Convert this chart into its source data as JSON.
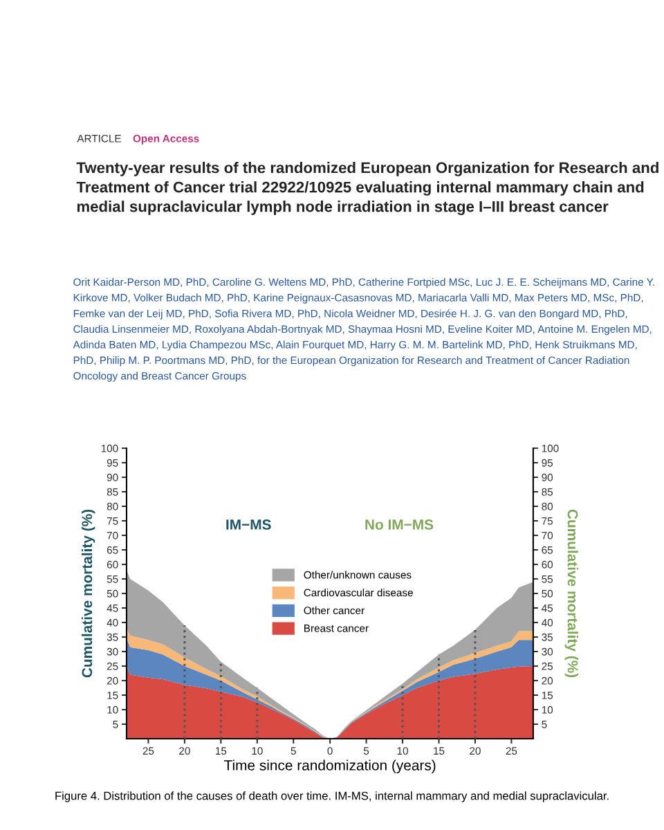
{
  "chart_data": [
    {
      "type": "area",
      "stacked": true,
      "title": "Twenty-year results of the randomized European Organization for Research and Treatment of Cancer trial 22922/10925 evaluating internal mammary chain and medial supraclavicular lymph node irradiation in stage I–III breast cancer",
      "subtitle": "Orit Kaidar-Person MD, PhD, Caroline G. Weltens MD, PhD, Catherine Fortpied MSc, Luc J. E. E. Scheijmans MD, Carine Y. Kirkove MD, Volker Budach MD, PhD, Karine Peignaux-Casasnovas MD, Mariacarla Valli MD, Max Peters MD, MSc, PhD, Femke van der Leij MD, PhD, Sofia Rivera MD, PhD, Nicola Weidner MD, Desirée H. J. G. van den Bongard MD, PhD, Claudia Linsenmeier MD, Roxolyana Abdah-Bortnyak MD, Shaymaa Hosni MD, Eveline Koiter MD, Antoine M. Engelen MD, Adinda Baten MD, Lydia Champezou MSc, Alain Fourquet MD, Harry G. M. M. Bartelink MD, PhD, Henk Struikmans MD, PhD, Philip M. P. Poortmans MD, PhD, for the European Organization for Research and Treatment of Cancer Radiation Oncology and Breast Cancer Groups",
      "annotations": [
        "ARTICLE",
        "Open Access",
        "IM−MS",
        "Figure 4. Distribution of the causes of death over time. IM-MS, internal mammary and medial supraclavicular."
      ],
      "xlabel": "Time since randomization (years)",
      "ylabel": "Cumulative mortality (%)",
      "x": [
        0,
        1,
        2,
        3,
        5,
        7,
        8,
        10,
        12,
        15,
        17,
        20,
        23,
        25,
        27.5,
        28
      ],
      "series": [
        {
          "name": "Breast cancer",
          "color": "#d94a43",
          "values": [
            0,
            0.5,
            2,
            3.5,
            6.5,
            9,
            10.2,
            12.5,
            14.4,
            16.2,
            17.3,
            18.5,
            20.5,
            21,
            22,
            25
          ]
        },
        {
          "name": "Other cancer",
          "color": "#5b86c0",
          "values": [
            0,
            0.2,
            0.4,
            0.5,
            0.4,
            0.5,
            0.8,
            1,
            1.6,
            3.8,
            4.7,
            6.5,
            8.5,
            9.5,
            9.5,
            9.5
          ]
        },
        {
          "name": "Cardiovascular disease",
          "color": "#f8b978",
          "values": [
            0,
            0.2,
            0.2,
            0.2,
            0.3,
            0.5,
            0.5,
            1.1,
            1,
            1.5,
            2,
            3,
            3.5,
            3.5,
            4,
            3.5
          ]
        },
        {
          "name": "Other/unknown causes",
          "color": "#a6a6a6",
          "values": [
            0,
            0.3,
            0.7,
            0.7,
            1.2,
            2,
            2.3,
            2.9,
            4,
            5,
            8,
            11,
            14.5,
            17,
            19.5,
            20
          ]
        }
      ],
      "xlim": [
        28,
        0
      ],
      "xticks": [
        25,
        20,
        15,
        10,
        5
      ],
      "ylim": [
        0,
        100
      ],
      "yticks": [
        5,
        10,
        15,
        20,
        25,
        30,
        35,
        40,
        45,
        50,
        55,
        60,
        65,
        70,
        75,
        80,
        85,
        90,
        95,
        100
      ],
      "ref_lines": [
        {
          "axis": "x",
          "value": 20,
          "line_style": "dotted",
          "color": "#555555"
        },
        {
          "axis": "x",
          "value": 15,
          "line_style": "dotted",
          "color": "#555555"
        },
        {
          "axis": "x",
          "value": 10,
          "line_style": "dotted",
          "color": "#555555"
        }
      ],
      "legend": "right",
      "grid": false
    },
    {
      "type": "area",
      "stacked": true,
      "annotations": [
        "No IM−MS"
      ],
      "ylabel": "Cumulative mortality (%)",
      "x": [
        0,
        1,
        2,
        3,
        5,
        7,
        10,
        12,
        15,
        17,
        20,
        23,
        25,
        26,
        28
      ],
      "series": [
        {
          "color": "#d94a43",
          "values": [
            0,
            0.5,
            3,
            5.5,
            8.5,
            11.3,
            15,
            17.5,
            20,
            21.3,
            22.3,
            23.8,
            24.5,
            24.8,
            25
          ]
        },
        {
          "color": "#5b86c0",
          "values": [
            0,
            0,
            0.2,
            0.3,
            0.5,
            0.7,
            1.5,
            2,
            3,
            4.2,
            5.2,
            6.2,
            7,
            9.2,
            9
          ]
        },
        {
          "color": "#f8b978",
          "values": [
            0,
            0,
            0.1,
            0.2,
            0.3,
            0.5,
            0.5,
            1,
            1.5,
            1.5,
            2,
            2,
            2,
            3,
            3
          ]
        },
        {
          "color": "#a6a6a6",
          "values": [
            0,
            0.2,
            0.4,
            0.2,
            0.5,
            1,
            2,
            2.5,
            4.5,
            5,
            8,
            13,
            15,
            15,
            17
          ]
        }
      ],
      "xlim": [
        0,
        28
      ],
      "xticks": [
        0,
        5,
        10,
        15,
        20,
        25
      ],
      "ylim": [
        0,
        100
      ],
      "yticks": [
        5,
        10,
        15,
        20,
        25,
        30,
        35,
        40,
        45,
        50,
        55,
        60,
        65,
        70,
        75,
        80,
        85,
        90,
        95,
        100
      ],
      "ref_lines": [
        {
          "axis": "x",
          "value": 10,
          "line_style": "dotted",
          "color": "#555555"
        },
        {
          "axis": "x",
          "value": 15,
          "line_style": "dotted",
          "color": "#555555"
        },
        {
          "axis": "x",
          "value": 20,
          "line_style": "dotted",
          "color": "#555555"
        }
      ],
      "legend": false,
      "grid": false
    }
  ]
}
